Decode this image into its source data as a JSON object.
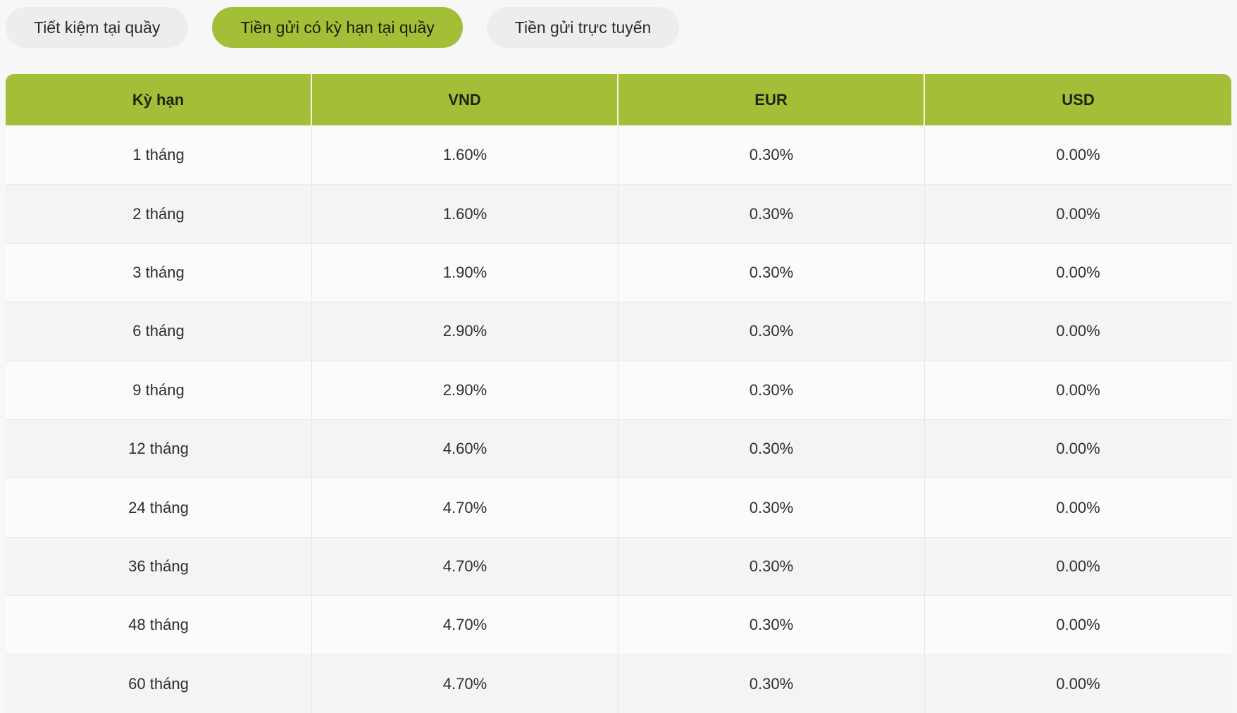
{
  "tabs": [
    {
      "label": "Tiết kiệm tại quầy",
      "active": false
    },
    {
      "label": "Tiền gửi có kỳ hạn tại quầy",
      "active": true
    },
    {
      "label": "Tiền gửi trực tuyến",
      "active": false
    }
  ],
  "table": {
    "columns": [
      "Kỳ hạn",
      "VND",
      "EUR",
      "USD"
    ],
    "rows": [
      [
        "1 tháng",
        "1.60%",
        "0.30%",
        "0.00%"
      ],
      [
        "2 tháng",
        "1.60%",
        "0.30%",
        "0.00%"
      ],
      [
        "3 tháng",
        "1.90%",
        "0.30%",
        "0.00%"
      ],
      [
        "6 tháng",
        "2.90%",
        "0.30%",
        "0.00%"
      ],
      [
        "9 tháng",
        "2.90%",
        "0.30%",
        "0.00%"
      ],
      [
        "12 tháng",
        "4.60%",
        "0.30%",
        "0.00%"
      ],
      [
        "24 tháng",
        "4.70%",
        "0.30%",
        "0.00%"
      ],
      [
        "36 tháng",
        "4.70%",
        "0.30%",
        "0.00%"
      ],
      [
        "48 tháng",
        "4.70%",
        "0.30%",
        "0.00%"
      ],
      [
        "60 tháng",
        "4.70%",
        "0.30%",
        "0.00%"
      ]
    ]
  },
  "colors": {
    "accent_green": "#a3be37",
    "page_background": "#f7f7f7",
    "tab_inactive_background": "#ededed",
    "row_odd": "#fbfbfb",
    "row_even": "#f3f4f4",
    "text_dark": "#2e2e2e"
  }
}
